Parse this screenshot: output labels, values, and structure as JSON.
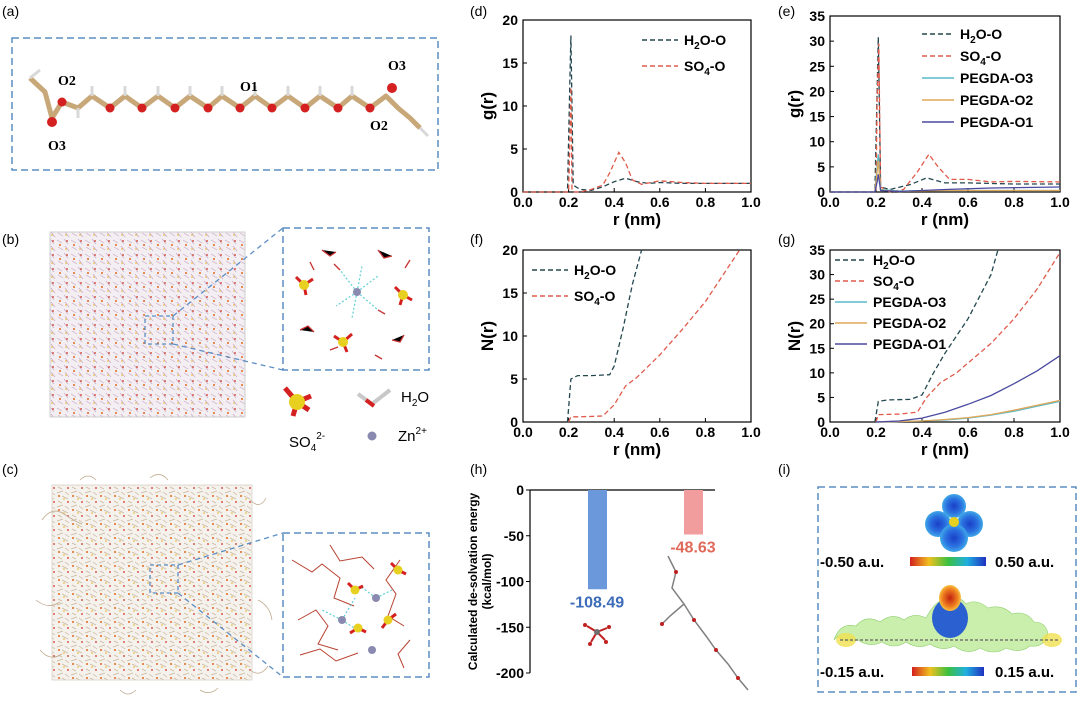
{
  "panel_labels": [
    "(a)",
    "(b)",
    "(c)",
    "(d)",
    "(e)",
    "(f)",
    "(g)",
    "(h)",
    "(i)"
  ],
  "colors": {
    "h2o": "#23474f",
    "so4": "#e05a4a",
    "o3": "#59b8c8",
    "o2": "#e0a85a",
    "o1": "#4a4aa0",
    "bar_blue": "#6b98db",
    "bar_red": "#f19d9d",
    "frame_blue": "#5b8ec4"
  },
  "molecule_a": {
    "labels": [
      "O2",
      "O3",
      "O1",
      "O3",
      "O2"
    ]
  },
  "legend_b": {
    "so4": "SO",
    "so4_sub": "4",
    "so4_sup": "2-",
    "h2o": "H",
    "h2o_sub": "2",
    "h2o_end": "O",
    "zn": "Zn",
    "zn_sup": "2+"
  },
  "esp": {
    "top_min": "-0.50 a.u.",
    "top_max": "0.50 a.u.",
    "bottom_min": "-0.15 a.u.",
    "bottom_max": "0.15 a.u."
  },
  "chart_data": [
    {
      "id": "d",
      "type": "line",
      "xlabel": "r (nm)",
      "ylabel": "g(r)",
      "xlim": [
        0,
        1.0
      ],
      "ylim": [
        0,
        20
      ],
      "xticks": [
        "0.0",
        "0.2",
        "0.4",
        "0.6",
        "0.8",
        "1.0"
      ],
      "yticks": [
        "0",
        "5",
        "10",
        "15",
        "20"
      ],
      "legend": [
        {
          "main": "H",
          "sub": "2",
          "end": "O-O"
        },
        {
          "main": "SO",
          "sub": "4",
          "end": "-O"
        }
      ],
      "series": [
        {
          "name": "H2O-O",
          "color": "#23474f",
          "x": [
            0,
            0.195,
            0.205,
            0.21,
            0.22,
            0.25,
            0.3,
            0.35,
            0.4,
            0.45,
            0.5,
            0.55,
            0.6,
            0.7,
            0.8,
            0.9,
            1.0
          ],
          "y": [
            0,
            0,
            12,
            18.2,
            0.8,
            0.3,
            0.2,
            0.6,
            1.2,
            1.6,
            1.2,
            1.0,
            1.1,
            1.0,
            1.0,
            1.0,
            1.0
          ]
        },
        {
          "name": "SO4-O",
          "color": "#e05a4a",
          "x": [
            0,
            0.2,
            0.205,
            0.21,
            0.215,
            0.225,
            0.25,
            0.3,
            0.35,
            0.38,
            0.42,
            0.45,
            0.48,
            0.52,
            0.6,
            0.7,
            0.8,
            0.9,
            1.0
          ],
          "y": [
            0,
            0,
            5,
            12.2,
            0.2,
            0,
            0,
            0.3,
            0.8,
            2.2,
            4.6,
            3.4,
            1.4,
            0.9,
            1.3,
            1.1,
            1.0,
            1.0,
            1.0
          ]
        }
      ]
    },
    {
      "id": "e",
      "type": "line",
      "xlabel": "r (nm)",
      "ylabel": "g(r)",
      "xlim": [
        0,
        1.0
      ],
      "ylim": [
        0,
        35
      ],
      "xticks": [
        "0.0",
        "0.2",
        "0.4",
        "0.6",
        "0.8",
        "1.0"
      ],
      "yticks": [
        "0",
        "5",
        "10",
        "15",
        "20",
        "25",
        "30",
        "35"
      ],
      "legend": [
        {
          "main": "H",
          "sub": "2",
          "end": "O-O"
        },
        {
          "main": "SO",
          "sub": "4",
          "end": "-O"
        },
        {
          "main": "PEGDA-O3",
          "sub": "",
          "end": ""
        },
        {
          "main": "PEGDA-O2",
          "sub": "",
          "end": ""
        },
        {
          "main": "PEGDA-O1",
          "sub": "",
          "end": ""
        }
      ],
      "series": [
        {
          "name": "H2O-O",
          "color": "#23474f",
          "dash": true,
          "x": [
            0,
            0.195,
            0.205,
            0.21,
            0.22,
            0.26,
            0.35,
            0.42,
            0.5,
            0.6,
            0.8,
            1.0
          ],
          "y": [
            0,
            0,
            20,
            30.8,
            1,
            0.5,
            1.5,
            2.8,
            1.8,
            1.8,
            1.6,
            1.6
          ]
        },
        {
          "name": "SO4-O",
          "color": "#e05a4a",
          "dash": true,
          "x": [
            0,
            0.2,
            0.205,
            0.212,
            0.22,
            0.26,
            0.32,
            0.38,
            0.43,
            0.47,
            0.52,
            0.6,
            0.7,
            0.8,
            1.0
          ],
          "y": [
            0,
            0,
            18,
            29.5,
            1,
            0,
            0.5,
            4,
            7.5,
            5,
            2.5,
            2.5,
            2.0,
            2.1,
            2.0
          ]
        },
        {
          "name": "PEGDA-O3",
          "color": "#59b8c8",
          "dash": false,
          "x": [
            0,
            0.195,
            0.205,
            0.21,
            0.22,
            0.3,
            0.5,
            1.0
          ],
          "y": [
            0,
            0,
            5,
            7.5,
            0.5,
            0.2,
            0.3,
            0.3
          ]
        },
        {
          "name": "PEGDA-O2",
          "color": "#e0a85a",
          "dash": false,
          "x": [
            0,
            0.195,
            0.205,
            0.21,
            0.22,
            0.3,
            0.5,
            1.0
          ],
          "y": [
            0,
            0,
            4,
            6.2,
            0.4,
            0.1,
            0.3,
            0.3
          ]
        },
        {
          "name": "PEGDA-O1",
          "color": "#4a4aa0",
          "dash": false,
          "x": [
            0,
            0.195,
            0.205,
            0.21,
            0.22,
            0.3,
            0.5,
            0.7,
            1.0
          ],
          "y": [
            0,
            0,
            2,
            3.5,
            0.3,
            0.1,
            0.5,
            0.8,
            1.0
          ]
        }
      ]
    },
    {
      "id": "f",
      "type": "line",
      "xlabel": "r (nm)",
      "ylabel": "N(r)",
      "xlim": [
        0,
        1.0
      ],
      "ylim": [
        0,
        20
      ],
      "xticks": [
        "0.0",
        "0.2",
        "0.4",
        "0.6",
        "0.8",
        "1.0"
      ],
      "yticks": [
        "0",
        "5",
        "10",
        "15",
        "20"
      ],
      "legend": [
        {
          "main": "H",
          "sub": "2",
          "end": "O-O"
        },
        {
          "main": "SO",
          "sub": "4",
          "end": "-O"
        }
      ],
      "series": [
        {
          "name": "H2O-O",
          "color": "#23474f",
          "x": [
            0.195,
            0.21,
            0.24,
            0.3,
            0.38,
            0.4,
            0.44,
            0.48,
            0.52
          ],
          "y": [
            0,
            5.0,
            5.4,
            5.4,
            5.5,
            6.5,
            11,
            16,
            20
          ]
        },
        {
          "name": "SO4-O",
          "color": "#e05a4a",
          "x": [
            0.2,
            0.21,
            0.25,
            0.35,
            0.4,
            0.45,
            0.5,
            0.6,
            0.7,
            0.8,
            0.9,
            0.95
          ],
          "y": [
            0,
            0.6,
            0.6,
            0.7,
            2.0,
            4.2,
            5.2,
            7.8,
            10.8,
            14,
            18,
            20
          ]
        }
      ]
    },
    {
      "id": "g",
      "type": "line",
      "xlabel": "r (nm)",
      "ylabel": "N(r)",
      "xlim": [
        0,
        1.0
      ],
      "ylim": [
        0,
        35
      ],
      "xticks": [
        "0.0",
        "0.2",
        "0.4",
        "0.6",
        "0.8",
        "1.0"
      ],
      "yticks": [
        "0",
        "5",
        "10",
        "15",
        "20",
        "25",
        "30",
        "35"
      ],
      "legend": [
        {
          "main": "H",
          "sub": "2",
          "end": "O-O"
        },
        {
          "main": "SO",
          "sub": "4",
          "end": "-O"
        },
        {
          "main": "PEGDA-O3",
          "sub": "",
          "end": ""
        },
        {
          "main": "PEGDA-O2",
          "sub": "",
          "end": ""
        },
        {
          "main": "PEGDA-O1",
          "sub": "",
          "end": ""
        }
      ],
      "series": [
        {
          "name": "H2O-O",
          "color": "#23474f",
          "dash": true,
          "x": [
            0.195,
            0.21,
            0.25,
            0.35,
            0.4,
            0.45,
            0.5,
            0.6,
            0.7,
            0.73
          ],
          "y": [
            0,
            4.2,
            4.5,
            4.6,
            5.5,
            10,
            14,
            21,
            30,
            35
          ]
        },
        {
          "name": "SO4-O",
          "color": "#e05a4a",
          "dash": true,
          "x": [
            0.2,
            0.21,
            0.3,
            0.38,
            0.42,
            0.48,
            0.55,
            0.6,
            0.7,
            0.8,
            0.9,
            1.0
          ],
          "y": [
            0,
            1.5,
            1.6,
            2.0,
            5,
            8,
            10,
            12,
            16,
            21,
            27,
            34.5
          ]
        },
        {
          "name": "PEGDA-O3",
          "color": "#59b8c8",
          "dash": false,
          "x": [
            0.2,
            0.3,
            0.4,
            0.5,
            0.6,
            0.7,
            0.8,
            0.9,
            1.0
          ],
          "y": [
            0,
            0.1,
            0.2,
            0.4,
            0.8,
            1.4,
            2.2,
            3.2,
            4.2
          ]
        },
        {
          "name": "PEGDA-O2",
          "color": "#e0a85a",
          "dash": false,
          "x": [
            0.2,
            0.3,
            0.4,
            0.5,
            0.6,
            0.7,
            0.8,
            0.9,
            1.0
          ],
          "y": [
            0,
            0.1,
            0.2,
            0.5,
            0.9,
            1.5,
            2.4,
            3.4,
            4.4
          ]
        },
        {
          "name": "PEGDA-O1",
          "color": "#4a4aa0",
          "dash": false,
          "x": [
            0.2,
            0.3,
            0.4,
            0.5,
            0.6,
            0.7,
            0.8,
            0.9,
            1.0
          ],
          "y": [
            0,
            0.2,
            0.8,
            2.0,
            3.6,
            5.4,
            7.8,
            10.4,
            13.5
          ]
        }
      ]
    },
    {
      "id": "h",
      "type": "bar",
      "ylabel": "Calculated de-solvation energy (kcal/mol)",
      "ylabel_line1": "Calculated de-solvation energy",
      "ylabel_line2": "(kcal/mol)",
      "ylim": [
        -200,
        0
      ],
      "yticks": [
        "0",
        "-50",
        "-100",
        "-150",
        "-200"
      ],
      "bars": [
        {
          "value": -108.49,
          "label": "-108.49",
          "color": "#6b98db"
        },
        {
          "value": -48.63,
          "label": "-48.63",
          "color": "#f19d9d"
        }
      ]
    }
  ]
}
